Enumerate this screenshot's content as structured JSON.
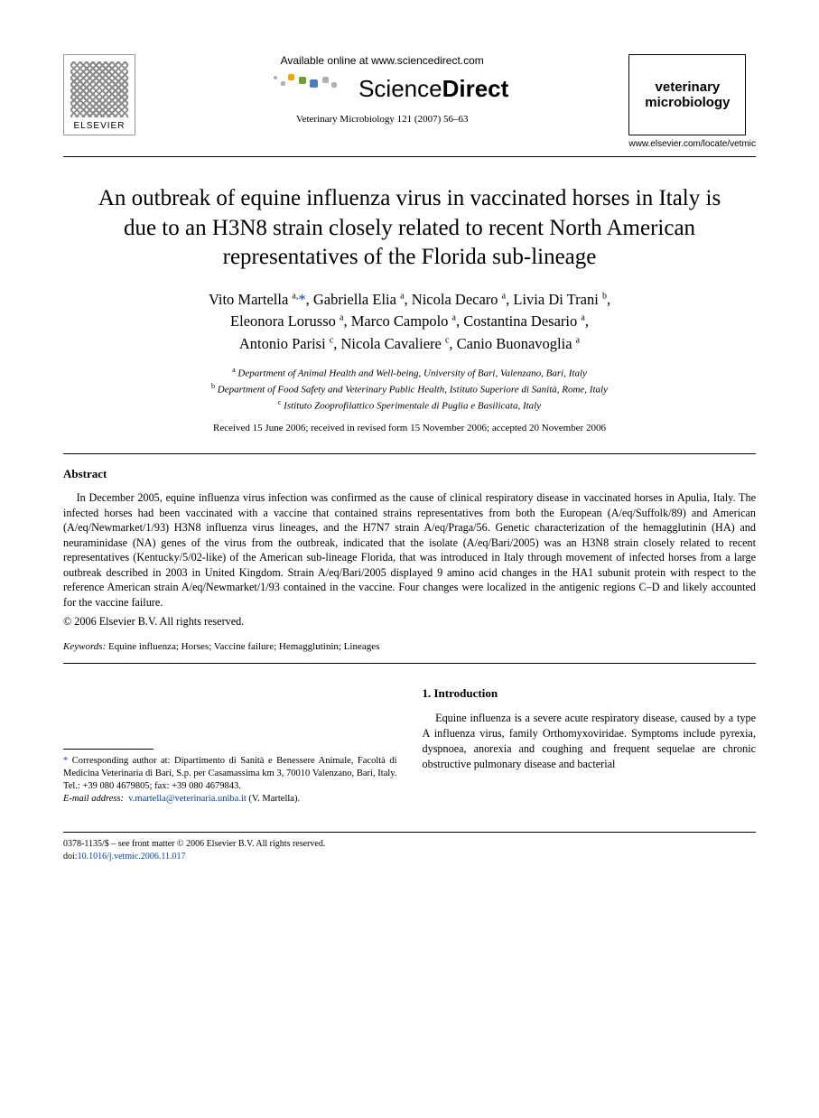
{
  "header": {
    "publisher_logo_label": "ELSEVIER",
    "available_online": "Available online at www.sciencedirect.com",
    "brand_prefix": "Science",
    "brand_suffix": "Direct",
    "journal_citation": "Veterinary Microbiology 121 (2007) 56–63",
    "journal_box_line1": "veterinary",
    "journal_box_line2": "microbiology",
    "locate_url": "www.elsevier.com/locate/vetmic"
  },
  "article": {
    "title": "An outbreak of equine influenza virus in vaccinated horses in Italy is due to an H3N8 strain closely related to recent North American representatives of the Florida sub-lineage",
    "authors_html": "Vito Martella <sup>a,</sup><a href='#' class='star'>*</a>, Gabriella Elia <sup>a</sup>, Nicola Decaro <sup>a</sup>, Livia Di Trani <sup>b</sup>,<br>Eleonora Lorusso <sup>a</sup>, Marco Campolo <sup>a</sup>, Costantina Desario <sup>a</sup>,<br>Antonio Parisi <sup>c</sup>, Nicola Cavaliere <sup>c</sup>, Canio Buonavoglia <sup>a</sup>",
    "affiliations": [
      {
        "sup": "a",
        "text": "Department of Animal Health and Well-being, University of Bari, Valenzano, Bari, Italy"
      },
      {
        "sup": "b",
        "text": "Department of Food Safety and Veterinary Public Health, Istituto Superiore di Sanità, Rome, Italy"
      },
      {
        "sup": "c",
        "text": "Istituto Zooprofilattico Sperimentale di Puglia e Basilicata, Italy"
      }
    ],
    "dates": "Received 15 June 2006; received in revised form 15 November 2006; accepted 20 November 2006"
  },
  "abstract": {
    "heading": "Abstract",
    "body": "In December 2005, equine influenza virus infection was confirmed as the cause of clinical respiratory disease in vaccinated horses in Apulia, Italy. The infected horses had been vaccinated with a vaccine that contained strains representatives from both the European (A/eq/Suffolk/89) and American (A/eq/Newmarket/1/93) H3N8 influenza virus lineages, and the H7N7 strain A/eq/Praga/56. Genetic characterization of the hemagglutinin (HA) and neuraminidase (NA) genes of the virus from the outbreak, indicated that the isolate (A/eq/Bari/2005) was an H3N8 strain closely related to recent representatives (Kentucky/5/02-like) of the American sub-lineage Florida, that was introduced in Italy through movement of infected horses from a large outbreak described in 2003 in United Kingdom. Strain A/eq/Bari/2005 displayed 9 amino acid changes in the HA1 subunit protein with respect to the reference American strain A/eq/Newmarket/1/93 contained in the vaccine. Four changes were localized in the antigenic regions C–D and likely accounted for the vaccine failure.",
    "copyright": "© 2006 Elsevier B.V. All rights reserved."
  },
  "keywords": {
    "label": "Keywords:",
    "text": " Equine influenza; Horses; Vaccine failure; Hemagglutinin; Lineages"
  },
  "introduction": {
    "heading": "1. Introduction",
    "body": "Equine influenza is a severe acute respiratory disease, caused by a type A influenza virus, family Orthomyxoviridae. Symptoms include pyrexia, dyspnoea, anorexia and coughing and frequent sequelae are chronic obstructive pulmonary disease and bacterial"
  },
  "footnote": {
    "corr_label": "* Corresponding author at: ",
    "corr_text": "Dipartimento di Sanità e Benessere Animale, Facoltà di Medicina Veterinaria di Bari, S.p. per Casamassima km 3, 70010 Valenzano, Bari, Italy. Tel.: +39 080 4679805; fax: +39 080 4679843.",
    "email_label": "E-mail address:",
    "email": "v.martella@veterinaria.uniba.it",
    "email_person": " (V. Martella)."
  },
  "front_matter": {
    "line1": "0378-1135/$ – see front matter © 2006 Elsevier B.V. All rights reserved.",
    "doi_label": "doi:",
    "doi": "10.1016/j.vetmic.2006.11.017"
  },
  "colors": {
    "text": "#000000",
    "link": "#0645ad",
    "bg": "#ffffff",
    "dot1": "#f7a600",
    "dot2": "#6ea02c",
    "dot3": "#4a7dbf",
    "dot4": "#b0b0b0"
  }
}
